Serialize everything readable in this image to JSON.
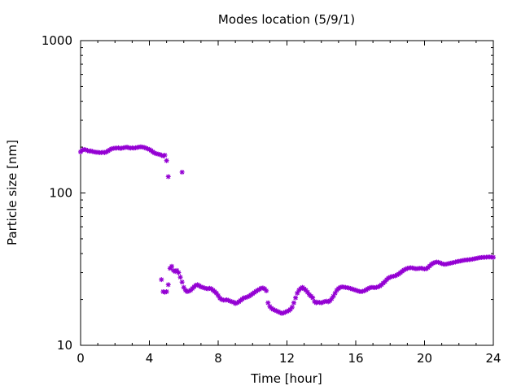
{
  "chart_data": {
    "type": "scatter",
    "title": "Modes location (5/9/1)",
    "xlabel": "Time [hour]",
    "ylabel": "Particle size [nm]",
    "xlim": [
      0,
      24
    ],
    "ylim": [
      10,
      1000
    ],
    "yscale": "log",
    "grid": false,
    "legend": "none",
    "xticks": [
      0,
      4,
      8,
      12,
      16,
      20,
      24
    ],
    "xtick_labels": [
      "0",
      "4",
      "8",
      "12",
      "16",
      "20",
      "24"
    ],
    "yticks": [
      10,
      100,
      1000
    ],
    "ytick_labels": [
      "10",
      "100",
      "1000"
    ],
    "marker": "asterisk",
    "color": "#9400d3",
    "series": [
      {
        "name": "",
        "points": [
          [
            0.0,
            186
          ],
          [
            0.1,
            191
          ],
          [
            0.2,
            193
          ],
          [
            0.3,
            192
          ],
          [
            0.4,
            190
          ],
          [
            0.5,
            188
          ],
          [
            0.6,
            189
          ],
          [
            0.7,
            187
          ],
          [
            0.8,
            186
          ],
          [
            0.9,
            185
          ],
          [
            1.0,
            185
          ],
          [
            1.1,
            184
          ],
          [
            1.2,
            184
          ],
          [
            1.3,
            185
          ],
          [
            1.4,
            184
          ],
          [
            1.5,
            186
          ],
          [
            1.6,
            189
          ],
          [
            1.7,
            192
          ],
          [
            1.8,
            195
          ],
          [
            1.9,
            196
          ],
          [
            2.0,
            197
          ],
          [
            2.1,
            197
          ],
          [
            2.2,
            198
          ],
          [
            2.3,
            196
          ],
          [
            2.4,
            197
          ],
          [
            2.5,
            198
          ],
          [
            2.6,
            199
          ],
          [
            2.7,
            200
          ],
          [
            2.8,
            198
          ],
          [
            2.9,
            197
          ],
          [
            3.0,
            198
          ],
          [
            3.1,
            197
          ],
          [
            3.2,
            198
          ],
          [
            3.3,
            199
          ],
          [
            3.4,
            200
          ],
          [
            3.5,
            201
          ],
          [
            3.6,
            200
          ],
          [
            3.7,
            199
          ],
          [
            3.8,
            197
          ],
          [
            3.9,
            195
          ],
          [
            4.0,
            193
          ],
          [
            4.1,
            190
          ],
          [
            4.2,
            186
          ],
          [
            4.3,
            183
          ],
          [
            4.4,
            181
          ],
          [
            4.5,
            180
          ],
          [
            4.6,
            179
          ],
          [
            4.7,
            177
          ],
          [
            4.8,
            175
          ],
          [
            4.9,
            177
          ],
          [
            5.0,
            163
          ],
          [
            5.1,
            128
          ],
          [
            5.9,
            137
          ],
          [
            4.7,
            27
          ],
          [
            4.8,
            22.5
          ],
          [
            4.9,
            22.3
          ],
          [
            5.0,
            22.5
          ],
          [
            5.1,
            25
          ],
          [
            5.2,
            32
          ],
          [
            5.3,
            33
          ],
          [
            5.4,
            31
          ],
          [
            5.5,
            30.5
          ],
          [
            5.6,
            31
          ],
          [
            5.7,
            30
          ],
          [
            5.8,
            28
          ],
          [
            5.9,
            26
          ],
          [
            6.0,
            24
          ],
          [
            6.1,
            23
          ],
          [
            6.2,
            22.5
          ],
          [
            6.3,
            22.7
          ],
          [
            6.4,
            23
          ],
          [
            6.5,
            23.6
          ],
          [
            6.6,
            24.2
          ],
          [
            6.7,
            24.8
          ],
          [
            6.8,
            25
          ],
          [
            6.9,
            24.6
          ],
          [
            7.0,
            24.2
          ],
          [
            7.1,
            24
          ],
          [
            7.2,
            23.8
          ],
          [
            7.3,
            23.6
          ],
          [
            7.4,
            23.5
          ],
          [
            7.5,
            23.7
          ],
          [
            7.6,
            23.5
          ],
          [
            7.7,
            23
          ],
          [
            7.8,
            22.5
          ],
          [
            7.9,
            22
          ],
          [
            8.0,
            21.2
          ],
          [
            8.1,
            20.4
          ],
          [
            8.2,
            20
          ],
          [
            8.3,
            19.8
          ],
          [
            8.4,
            19.8
          ],
          [
            8.5,
            19.9
          ],
          [
            8.6,
            19.7
          ],
          [
            8.7,
            19.5
          ],
          [
            8.8,
            19.3
          ],
          [
            8.9,
            19.2
          ],
          [
            9.0,
            18.8
          ],
          [
            9.1,
            19
          ],
          [
            9.2,
            19.3
          ],
          [
            9.3,
            19.7
          ],
          [
            9.4,
            20.1
          ],
          [
            9.5,
            20.5
          ],
          [
            9.6,
            20.6
          ],
          [
            9.7,
            20.8
          ],
          [
            9.8,
            21
          ],
          [
            9.9,
            21.4
          ],
          [
            10.0,
            21.8
          ],
          [
            10.1,
            22.2
          ],
          [
            10.2,
            22.6
          ],
          [
            10.3,
            23
          ],
          [
            10.4,
            23.3
          ],
          [
            10.5,
            23.7
          ],
          [
            10.6,
            23.8
          ],
          [
            10.7,
            23.5
          ],
          [
            10.8,
            22.8
          ],
          [
            10.9,
            19
          ],
          [
            11.0,
            18
          ],
          [
            11.1,
            17.5
          ],
          [
            11.2,
            17.2
          ],
          [
            11.3,
            17
          ],
          [
            11.4,
            16.8
          ],
          [
            11.5,
            16.6
          ],
          [
            11.6,
            16.4
          ],
          [
            11.7,
            16.2
          ],
          [
            11.8,
            16.3
          ],
          [
            11.9,
            16.5
          ],
          [
            12.0,
            16.7
          ],
          [
            12.1,
            16.9
          ],
          [
            12.2,
            17.2
          ],
          [
            12.3,
            17.8
          ],
          [
            12.4,
            19
          ],
          [
            12.5,
            20.5
          ],
          [
            12.6,
            22
          ],
          [
            12.7,
            23
          ],
          [
            12.8,
            23.6
          ],
          [
            12.9,
            24
          ],
          [
            13.0,
            23.5
          ],
          [
            13.1,
            23
          ],
          [
            13.2,
            22.3
          ],
          [
            13.3,
            21.5
          ],
          [
            13.4,
            21
          ],
          [
            13.5,
            20.5
          ],
          [
            13.6,
            19.4
          ],
          [
            13.7,
            19
          ],
          [
            13.8,
            19.2
          ],
          [
            13.9,
            19.1
          ],
          [
            14.0,
            19
          ],
          [
            14.1,
            19.2
          ],
          [
            14.2,
            19.4
          ],
          [
            14.3,
            19.5
          ],
          [
            14.4,
            19.3
          ],
          [
            14.5,
            19.6
          ],
          [
            14.6,
            20.2
          ],
          [
            14.7,
            21
          ],
          [
            14.8,
            22
          ],
          [
            14.9,
            23
          ],
          [
            15.0,
            23.6
          ],
          [
            15.1,
            24
          ],
          [
            15.2,
            24.2
          ],
          [
            15.3,
            24.1
          ],
          [
            15.4,
            24
          ],
          [
            15.5,
            23.9
          ],
          [
            15.6,
            23.8
          ],
          [
            15.7,
            23.6
          ],
          [
            15.8,
            23.4
          ],
          [
            15.9,
            23.2
          ],
          [
            16.0,
            23
          ],
          [
            16.1,
            22.8
          ],
          [
            16.2,
            22.6
          ],
          [
            16.3,
            22.5
          ],
          [
            16.4,
            22.6
          ],
          [
            16.5,
            22.8
          ],
          [
            16.6,
            23.1
          ],
          [
            16.7,
            23.5
          ],
          [
            16.8,
            23.8
          ],
          [
            16.9,
            24
          ],
          [
            17.0,
            24
          ],
          [
            17.1,
            23.9
          ],
          [
            17.2,
            24
          ],
          [
            17.3,
            24.2
          ],
          [
            17.4,
            24.5
          ],
          [
            17.5,
            25
          ],
          [
            17.6,
            25.6
          ],
          [
            17.7,
            26.2
          ],
          [
            17.8,
            27
          ],
          [
            17.9,
            27.6
          ],
          [
            18.0,
            28
          ],
          [
            18.1,
            28.3
          ],
          [
            18.2,
            28.4
          ],
          [
            18.3,
            28.6
          ],
          [
            18.4,
            29
          ],
          [
            18.5,
            29.4
          ],
          [
            18.6,
            30
          ],
          [
            18.7,
            30.6
          ],
          [
            18.8,
            31.2
          ],
          [
            18.9,
            31.6
          ],
          [
            19.0,
            32
          ],
          [
            19.1,
            32.2
          ],
          [
            19.2,
            32.3
          ],
          [
            19.3,
            32.2
          ],
          [
            19.4,
            32
          ],
          [
            19.5,
            31.8
          ],
          [
            19.6,
            31.9
          ],
          [
            19.7,
            32
          ],
          [
            19.8,
            32.1
          ],
          [
            19.9,
            31.9
          ],
          [
            20.0,
            31.7
          ],
          [
            20.1,
            31.8
          ],
          [
            20.2,
            32.4
          ],
          [
            20.3,
            33.2
          ],
          [
            20.4,
            34
          ],
          [
            20.5,
            34.6
          ],
          [
            20.6,
            35
          ],
          [
            20.7,
            35.2
          ],
          [
            20.8,
            35.1
          ],
          [
            20.9,
            34.8
          ],
          [
            21.0,
            34.4
          ],
          [
            21.1,
            34.1
          ],
          [
            21.2,
            34
          ],
          [
            21.3,
            34.2
          ],
          [
            21.4,
            34.4
          ],
          [
            21.5,
            34.6
          ],
          [
            21.6,
            34.8
          ],
          [
            21.7,
            35
          ],
          [
            21.8,
            35.2
          ],
          [
            21.9,
            35.5
          ],
          [
            22.0,
            35.6
          ],
          [
            22.1,
            35.8
          ],
          [
            22.2,
            36
          ],
          [
            22.3,
            36.2
          ],
          [
            22.4,
            36.3
          ],
          [
            22.5,
            36.4
          ],
          [
            22.6,
            36.5
          ],
          [
            22.7,
            36.6
          ],
          [
            22.8,
            36.8
          ],
          [
            22.9,
            37
          ],
          [
            23.0,
            37.2
          ],
          [
            23.1,
            37.4
          ],
          [
            23.2,
            37.6
          ],
          [
            23.3,
            37.7
          ],
          [
            23.4,
            37.8
          ],
          [
            23.5,
            37.8
          ],
          [
            23.6,
            37.9
          ],
          [
            23.7,
            38
          ],
          [
            23.8,
            38
          ],
          [
            23.9,
            37.9
          ],
          [
            24.0,
            37.8
          ]
        ]
      }
    ]
  }
}
